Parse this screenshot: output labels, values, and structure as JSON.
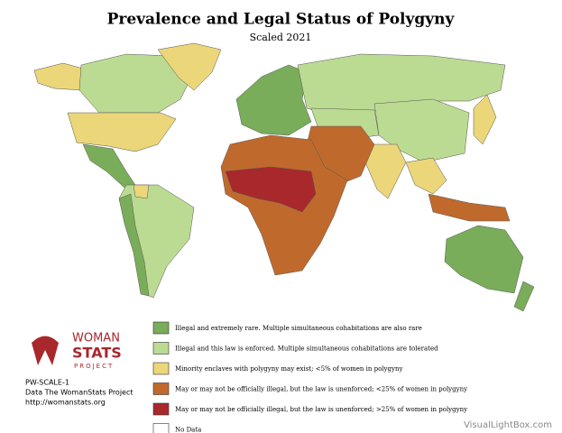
{
  "header": {
    "title": "Prevalence and Legal Status of Polygyny",
    "subtitle": "Scaled 2021"
  },
  "legend": {
    "items": [
      {
        "label": "Illegal and extremely rare. Multiple simultaneous cohabitations are also rare",
        "color": "#7aad5a"
      },
      {
        "label": "Illegal and this law is enforced. Multiple simultaneous cohabitations are tolerated",
        "color": "#bcdb92"
      },
      {
        "label": "Minority enclaves with polygyny may exist; <5% of women in polygyny",
        "color": "#ecd67a"
      },
      {
        "label": "May or may not be officially illegal, but the law is unenforced; <25% of women in polygyny",
        "color": "#bf6a2c"
      },
      {
        "label": "May or may not be officially illegal, but the law is unenforced; >25% of women in polygyny",
        "color": "#a8282c"
      },
      {
        "label": "No Data",
        "color": "#ffffff"
      }
    ]
  },
  "logo": {
    "line1": "WOMAN",
    "line2": "STATS",
    "line3": "PROJECT"
  },
  "footer": {
    "code": "PW-SCALE-1",
    "source": "Data The WomanStats Project",
    "url": "http://womanstats.org",
    "watermark": "VisualLightBox.com"
  }
}
